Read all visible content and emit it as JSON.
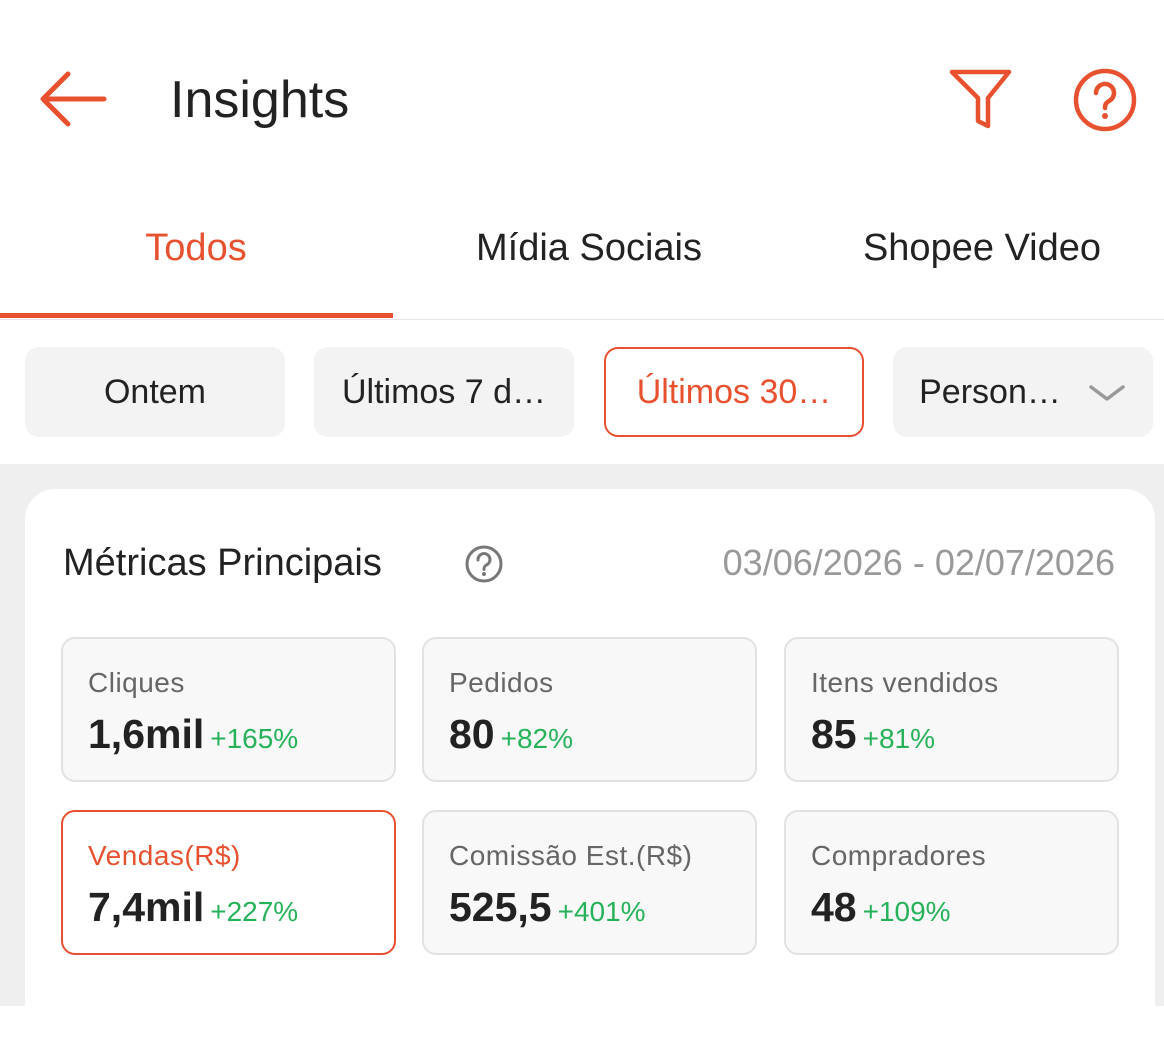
{
  "header": {
    "title": "Insights"
  },
  "tabs": [
    "Todos",
    "Mídia Sociais",
    "Shopee Video"
  ],
  "filters": [
    "Ontem",
    "Últimos 7 d…",
    "Últimos 30…",
    "Person…"
  ],
  "metrics": {
    "title": "Métricas Principais",
    "date_range": "03/06/2026 - 02/07/2026",
    "cards": [
      {
        "label": "Cliques",
        "value": "1,6mil",
        "change": "+165%"
      },
      {
        "label": "Pedidos",
        "value": "80",
        "change": "+82%"
      },
      {
        "label": "Itens vendidos",
        "value": "85",
        "change": "+81%"
      },
      {
        "label": "Vendas(R$)",
        "value": "7,4mil",
        "change": "+227%"
      },
      {
        "label": "Comissão Est.(R$)",
        "value": "525,5",
        "change": "+401%"
      },
      {
        "label": "Compradores",
        "value": "48",
        "change": "+109%"
      }
    ]
  }
}
